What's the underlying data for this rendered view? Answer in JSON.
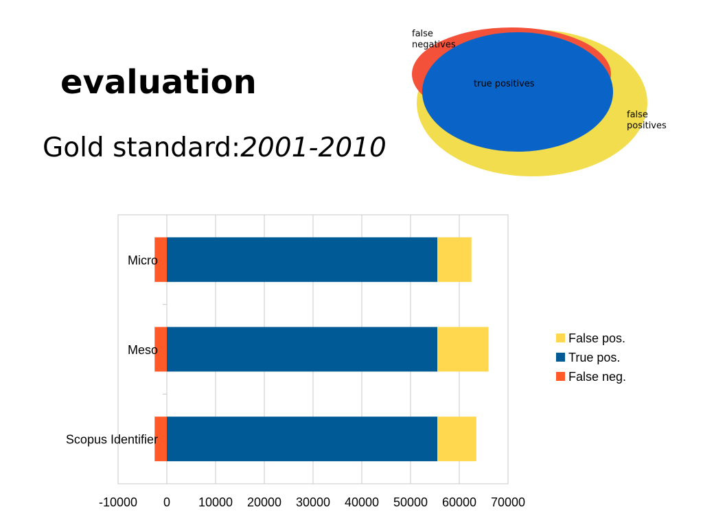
{
  "slide": {
    "title": "evaluation",
    "subtitle_prefix": "Gold standard:",
    "subtitle_period": "2001-2010"
  },
  "venn": {
    "labels": {
      "false_negatives": [
        "false",
        "negatives"
      ],
      "true_positives": "true positives",
      "false_positives": [
        "false",
        "positives"
      ]
    },
    "colors": {
      "false_negatives": "#f4513a",
      "true_positives": "#0a64c8",
      "false_positives": "#f2dd4e"
    }
  },
  "chart_data": {
    "type": "bar",
    "orientation": "horizontal",
    "stacked": true,
    "categories": [
      "Micro",
      "Meso",
      "Scopus Identifier"
    ],
    "series": [
      {
        "name": "False neg.",
        "values": [
          -2500,
          -2500,
          -2500
        ],
        "color": "#ff5a28"
      },
      {
        "name": "True pos.",
        "values": [
          55500,
          55500,
          55500
        ],
        "color": "#005a96"
      },
      {
        "name": "False pos.",
        "values": [
          7000,
          10500,
          8000
        ],
        "color": "#ffd84f"
      }
    ],
    "xlim": [
      -10000,
      70000
    ],
    "xticks": [
      -10000,
      0,
      10000,
      20000,
      30000,
      40000,
      50000,
      60000,
      70000
    ],
    "grid": true,
    "legend_position": "right",
    "legend_order": [
      "False pos.",
      "True pos.",
      "False neg."
    ]
  }
}
